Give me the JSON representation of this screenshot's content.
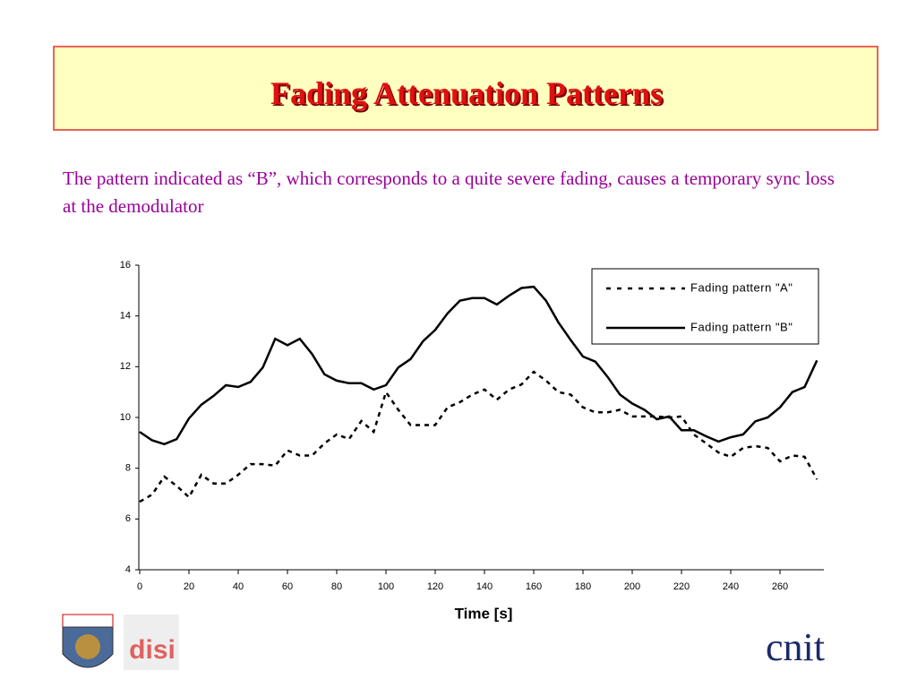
{
  "slide": {
    "title": "Fading Attenuation Patterns",
    "text": "The pattern indicated as “B”, which corresponds to a quite severe fading, causes a temporary sync loss at the demodulator",
    "logos": [
      "disi",
      "cnit"
    ]
  },
  "chart_data": {
    "type": "line",
    "x_label": "Time [s]",
    "x": [
      0,
      5,
      10,
      15,
      20,
      25,
      30,
      35,
      40,
      45,
      50,
      55,
      60,
      65,
      70,
      75,
      80,
      85,
      90,
      95,
      100,
      105,
      110,
      115,
      120,
      125,
      130,
      135,
      140,
      145,
      150,
      155,
      160,
      165,
      170,
      175,
      180,
      185,
      190,
      195,
      200,
      205,
      210,
      215,
      220,
      225,
      230,
      235,
      240,
      245,
      250,
      255,
      260,
      265,
      270,
      275
    ],
    "series": [
      {
        "name": "Fading pattern \"A\"",
        "color": "#000000",
        "dash": true,
        "values": [
          6.68,
          6.96,
          7.67,
          7.3,
          6.86,
          7.74,
          7.4,
          7.4,
          7.74,
          8.16,
          8.16,
          8.1,
          8.7,
          8.5,
          8.5,
          8.98,
          9.33,
          9.15,
          9.86,
          9.43,
          11.0,
          10.3,
          9.7,
          9.7,
          9.7,
          10.4,
          10.6,
          10.9,
          11.1,
          10.7,
          11.1,
          11.3,
          11.8,
          11.45,
          11.0,
          10.9,
          10.4,
          10.2,
          10.2,
          10.3,
          10.04,
          10.04,
          10.04,
          10.0,
          10.04,
          9.33,
          8.98,
          8.62,
          8.45,
          8.8,
          8.87,
          8.8,
          8.27,
          8.5,
          8.45,
          7.56
        ]
      },
      {
        "name": "Fading pattern \"B\"",
        "color": "#000000",
        "dash": false,
        "values": [
          9.43,
          9.1,
          8.95,
          9.15,
          9.96,
          10.5,
          10.85,
          11.27,
          11.2,
          11.4,
          11.97,
          13.1,
          12.85,
          13.1,
          12.5,
          11.7,
          11.45,
          11.35,
          11.35,
          11.1,
          11.27,
          11.97,
          12.3,
          13.0,
          13.45,
          14.1,
          14.6,
          14.7,
          14.7,
          14.45,
          14.8,
          15.1,
          15.15,
          14.6,
          13.75,
          13.05,
          12.4,
          12.2,
          11.6,
          10.9,
          10.55,
          10.3,
          9.93,
          10.04,
          9.5,
          9.5,
          9.26,
          9.05,
          9.22,
          9.33,
          9.85,
          10.0,
          10.4,
          11.0,
          11.2,
          12.25
        ]
      }
    ],
    "xlim": [
      0,
      278
    ],
    "xticks": [
      0,
      20,
      40,
      60,
      80,
      100,
      120,
      140,
      160,
      180,
      200,
      220,
      240,
      260
    ],
    "ylim": [
      4,
      16
    ],
    "yticks": [
      4,
      6,
      8,
      10,
      12,
      14,
      16
    ],
    "grid": false,
    "legend": "upper right"
  }
}
